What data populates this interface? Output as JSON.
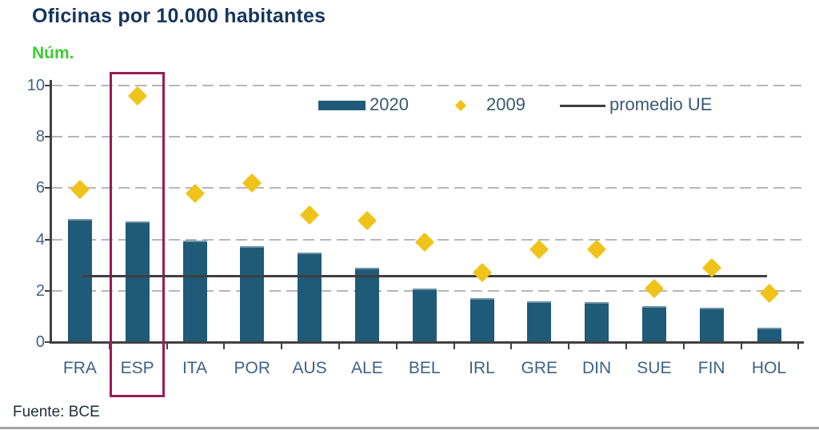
{
  "chart_data": {
    "type": "bar",
    "title": "Oficinas por 10.000 habitantes",
    "unit_label": "Núm.",
    "categories": [
      "FRA",
      "ESP",
      "ITA",
      "POR",
      "AUS",
      "ALE",
      "BEL",
      "IRL",
      "GRE",
      "DIN",
      "SUE",
      "FIN",
      "HOL"
    ],
    "series": [
      {
        "name": "2020",
        "type": "bar",
        "values": [
          4.8,
          4.7,
          3.95,
          3.75,
          3.5,
          2.9,
          2.1,
          1.7,
          1.6,
          1.55,
          1.4,
          1.35,
          0.55
        ]
      },
      {
        "name": "2009",
        "type": "scatter",
        "marker": "diamond",
        "values": [
          5.95,
          9.6,
          5.8,
          6.2,
          4.95,
          4.75,
          3.9,
          2.7,
          3.6,
          3.6,
          2.1,
          2.9,
          1.9
        ]
      },
      {
        "name": "promedio UE",
        "type": "hline",
        "value": 2.6
      }
    ],
    "ylim": [
      0,
      10
    ],
    "yticks": [
      0,
      2,
      4,
      6,
      8,
      10
    ],
    "grid": "horizontal-dashed",
    "legend_position": "top-inside",
    "highlighted_category": "ESP",
    "source": "Fuente: BCE"
  },
  "colors": {
    "bar": "#1f5a78",
    "diamond": "#efc319",
    "highlight_box": "#9b1b56",
    "avg_line": "#3f3f3f",
    "title": "#17365d",
    "unit_label": "#3dcb33",
    "axis_tick_labels": "#3f6285",
    "legend_text": "#3a5a74",
    "source_text": "#1f2d3a"
  }
}
